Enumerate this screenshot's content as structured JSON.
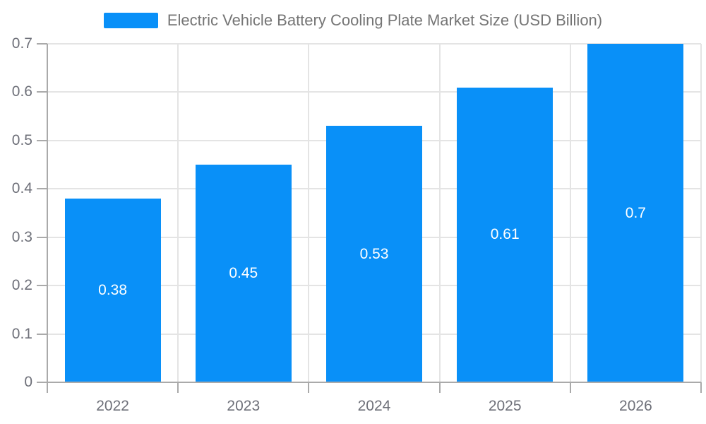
{
  "legend": {
    "series_label": "Electric Vehicle Battery Cooling Plate Market Size (USD Billion)"
  },
  "chart_data": {
    "type": "bar",
    "title": "Electric Vehicle Battery Cooling Plate Market Size (USD Billion)",
    "categories": [
      "2022",
      "2023",
      "2024",
      "2025",
      "2026"
    ],
    "values": [
      0.38,
      0.45,
      0.53,
      0.61,
      0.7
    ],
    "value_labels": [
      "0.38",
      "0.45",
      "0.53",
      "0.61",
      "0.7"
    ],
    "xlabel": "",
    "ylabel": "",
    "ylim": [
      0,
      0.7
    ],
    "ytick_step": 0.1,
    "y_tick_labels": [
      "0",
      "0.1",
      "0.2",
      "0.3",
      "0.4",
      "0.5",
      "0.6",
      "0.7"
    ],
    "grid": true,
    "legend_position": "top",
    "colors": {
      "bar": "#0990f8",
      "bar_value_label": "#ffffff",
      "axis_label": "#6e7079",
      "legend_text": "#757575",
      "grid_line": "#e4e4e4",
      "axis_line": "#aaaaaa",
      "background": "#ffffff"
    }
  }
}
